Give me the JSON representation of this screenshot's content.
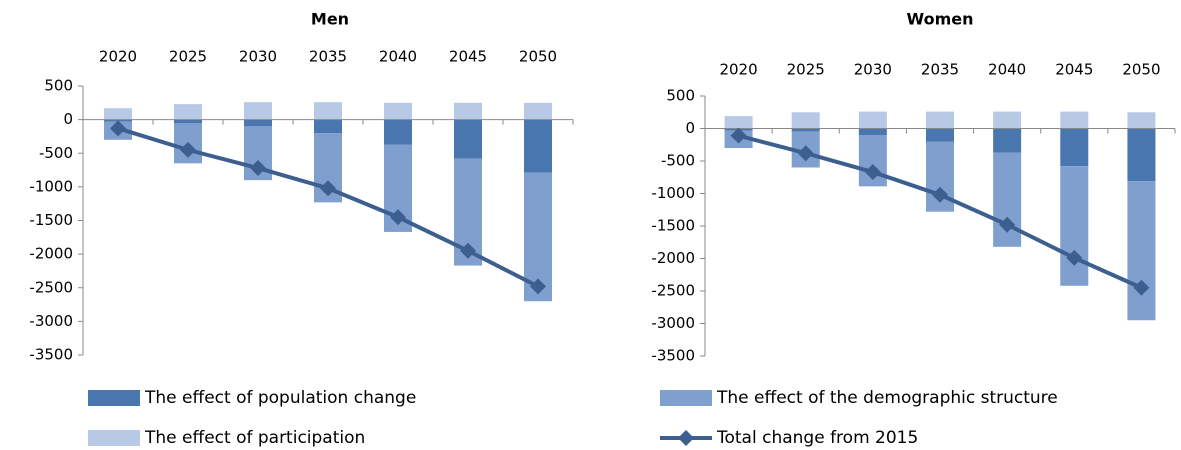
{
  "chart_data": [
    {
      "type": "bar",
      "title": "Men",
      "categories": [
        "2020",
        "2025",
        "2030",
        "2035",
        "2040",
        "2045",
        "2050"
      ],
      "series": [
        {
          "name": "The effect of population change",
          "color": "#4a76b0",
          "values": [
            -30,
            -50,
            -100,
            -200,
            -370,
            -580,
            -790
          ]
        },
        {
          "name": "The effect of the demographic structure",
          "color": "#7f9fcf",
          "values": [
            -270,
            -600,
            -800,
            -1030,
            -1300,
            -1590,
            -1910
          ]
        },
        {
          "name": "The effect of participation",
          "color": "#b8c9e6",
          "values": [
            170,
            230,
            260,
            260,
            250,
            250,
            250
          ]
        },
        {
          "name": "Total change from 2015",
          "color": "#3d5f8f",
          "type": "line",
          "values": [
            -130,
            -450,
            -720,
            -1020,
            -1450,
            -1950,
            -2480
          ]
        }
      ],
      "ylim": [
        -3500,
        500
      ],
      "yticks": [
        -3500,
        -3000,
        -2500,
        -2000,
        -1500,
        -1000,
        -500,
        0,
        500
      ]
    },
    {
      "type": "bar",
      "title": "Women",
      "categories": [
        "2020",
        "2025",
        "2030",
        "2035",
        "2040",
        "2045",
        "2050"
      ],
      "series": [
        {
          "name": "The effect of population change",
          "color": "#4a76b0",
          "values": [
            -30,
            -50,
            -100,
            -200,
            -370,
            -580,
            -810
          ]
        },
        {
          "name": "The effect of the demographic structure",
          "color": "#7f9fcf",
          "values": [
            -270,
            -550,
            -790,
            -1080,
            -1450,
            -1840,
            -2140
          ]
        },
        {
          "name": "The effect of participation",
          "color": "#b8c9e6",
          "values": [
            190,
            250,
            260,
            260,
            260,
            260,
            250
          ]
        },
        {
          "name": "Total change from 2015",
          "color": "#3d5f8f",
          "type": "line",
          "values": [
            -110,
            -380,
            -670,
            -1020,
            -1480,
            -1990,
            -2450
          ]
        }
      ],
      "ylim": [
        -3500,
        500
      ],
      "yticks": [
        -3500,
        -3000,
        -2500,
        -2000,
        -1500,
        -1000,
        -500,
        0,
        500
      ]
    }
  ]
}
